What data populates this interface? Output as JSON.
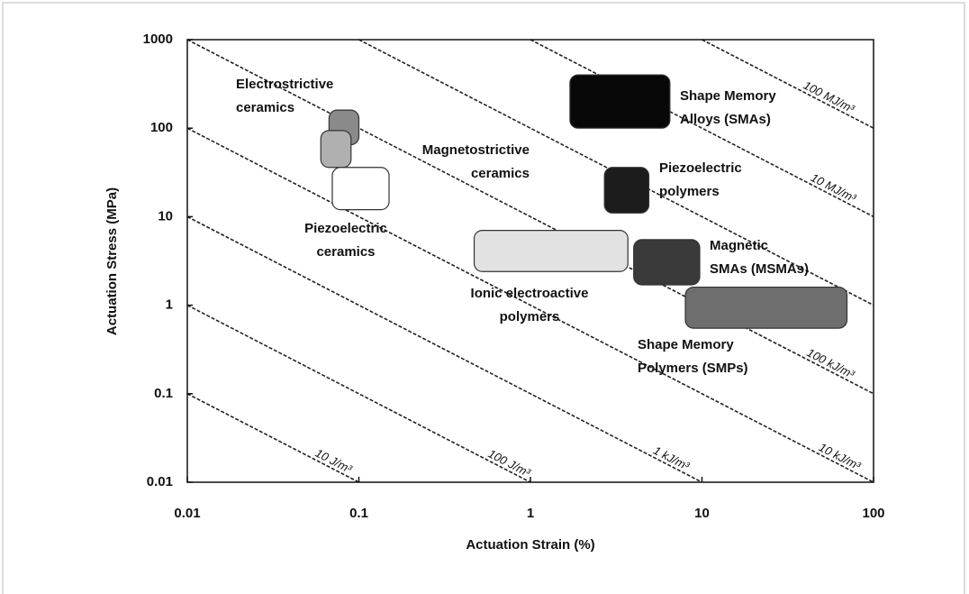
{
  "chart_data": {
    "type": "region",
    "x_label": "Actuation Strain (%)",
    "y_label": "Actuation Stress (MPa)",
    "log_x": true,
    "log_y": true,
    "xlim": [
      0.01,
      100
    ],
    "xticks": [
      0.01,
      0.1,
      1,
      10,
      100
    ],
    "ylim": [
      0.01,
      1000
    ],
    "yticks": [
      0.01,
      0.1,
      1,
      10,
      100,
      1000
    ],
    "energy_lines": [
      {
        "value": 10,
        "label": "10 J/m³"
      },
      {
        "value": 100,
        "label": "100 J/m³"
      },
      {
        "value": 1000,
        "label": "1 kJ/m³"
      },
      {
        "value": 10000,
        "label": "10 kJ/m³"
      },
      {
        "value": 100000,
        "label": "100 kJ/m³"
      },
      {
        "value": 1000000,
        "label": null
      },
      {
        "value": 10000000,
        "label": "10 MJ/m³"
      },
      {
        "value": 100000000,
        "label": "100 MJ/m³"
      }
    ],
    "regions": [
      {
        "name": [
          "Electrostrictive",
          "ceramics"
        ],
        "strain": [
          0.067,
          0.1
        ],
        "stress": [
          65,
          160
        ],
        "color": "#8a8a8a"
      },
      {
        "name": [
          "Magnetostrictive",
          "ceramics"
        ],
        "strain": [
          0.06,
          0.09
        ],
        "stress": [
          36,
          94
        ],
        "color": "#b0b0b0"
      },
      {
        "name": [
          "Piezoelectric",
          "ceramics"
        ],
        "strain": [
          0.07,
          0.15
        ],
        "stress": [
          12,
          36
        ],
        "color": "#ffffff"
      },
      {
        "name": [
          "Shape Memory",
          "Alloys (SMAs)"
        ],
        "strain": [
          1.7,
          6.5
        ],
        "stress": [
          100,
          400
        ],
        "color": "#080808"
      },
      {
        "name": [
          "Piezoelectric",
          "polymers"
        ],
        "strain": [
          2.7,
          4.9
        ],
        "stress": [
          11,
          36
        ],
        "color": "#1c1c1c"
      },
      {
        "name": [
          "Ionic electroactive",
          "polymers"
        ],
        "strain": [
          0.47,
          3.7
        ],
        "stress": [
          2.4,
          7
        ],
        "color": "#e2e2e2"
      },
      {
        "name": [
          "Magnetic",
          "SMAs (MSMAs)"
        ],
        "strain": [
          4,
          9.7
        ],
        "stress": [
          1.7,
          5.5
        ],
        "color": "#3a3a3a"
      },
      {
        "name": [
          "Shape Memory",
          "Polymers (SMPs)"
        ],
        "strain": [
          8,
          70
        ],
        "stress": [
          0.55,
          1.6
        ],
        "color": "#6e6e6e"
      }
    ]
  }
}
